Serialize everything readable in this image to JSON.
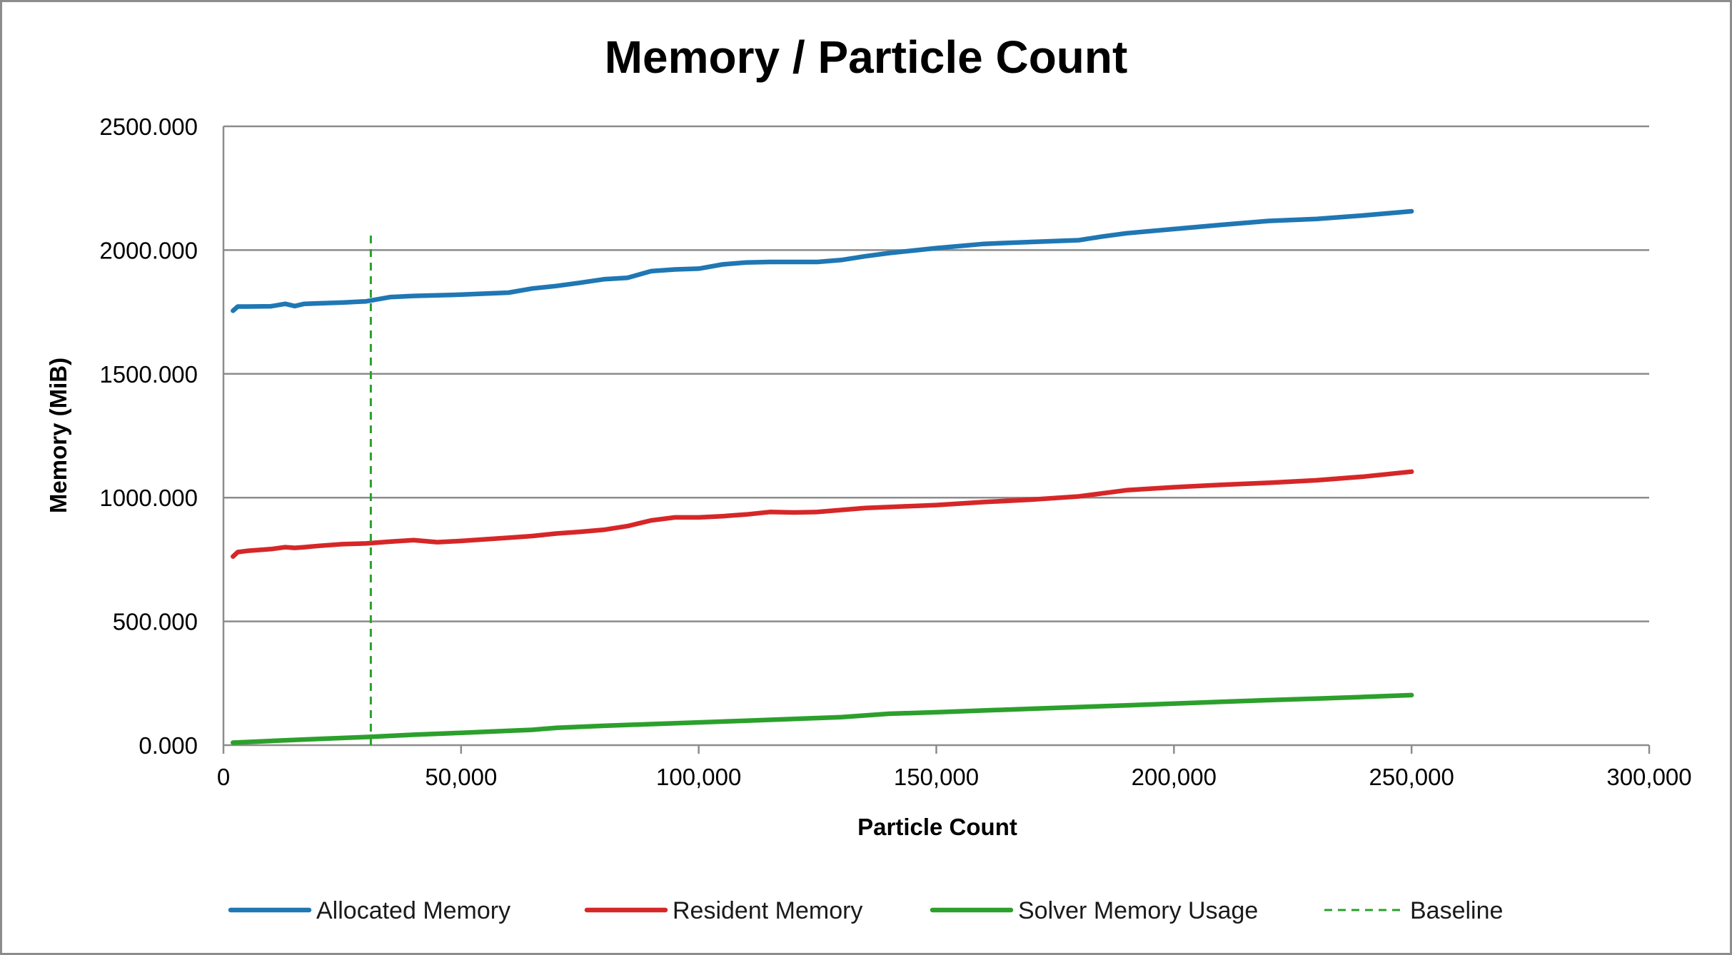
{
  "chart_data": {
    "type": "line",
    "title": "Memory / Particle Count",
    "xlabel": "Particle Count",
    "ylabel": "Memory (MiB)",
    "xlim": [
      0,
      300000
    ],
    "ylim": [
      0,
      2500
    ],
    "xticks": [
      0,
      50000,
      100000,
      150000,
      200000,
      250000,
      300000
    ],
    "xtick_labels": [
      "0",
      "50,000",
      "100,000",
      "150,000",
      "200,000",
      "250,000",
      "300,000"
    ],
    "yticks": [
      0,
      500,
      1000,
      1500,
      2000,
      2500
    ],
    "ytick_labels": [
      "0.000",
      "500.000",
      "1000.000",
      "1500.000",
      "2000.000",
      "2500.000"
    ],
    "grid": "horizontal",
    "legend_position": "bottom",
    "series": [
      {
        "name": "Allocated Memory",
        "color": "#1f77b4",
        "style": "solid",
        "x": [
          2000,
          3000,
          5000,
          10000,
          13000,
          15000,
          17000,
          20000,
          25000,
          30000,
          35000,
          40000,
          50000,
          60000,
          65000,
          70000,
          75000,
          80000,
          85000,
          90000,
          95000,
          100000,
          105000,
          110000,
          115000,
          120000,
          125000,
          130000,
          135000,
          140000,
          145000,
          150000,
          160000,
          170000,
          180000,
          185000,
          190000,
          200000,
          210000,
          220000,
          230000,
          240000,
          250000
        ],
        "y": [
          1755,
          1772,
          1772,
          1773,
          1783,
          1774,
          1783,
          1785,
          1788,
          1793,
          1810,
          1815,
          1820,
          1828,
          1845,
          1855,
          1868,
          1882,
          1888,
          1915,
          1922,
          1925,
          1942,
          1950,
          1952,
          1952,
          1952,
          1960,
          1975,
          1988,
          1998,
          2008,
          2025,
          2033,
          2040,
          2055,
          2068,
          2085,
          2102,
          2118,
          2126,
          2140,
          2157
        ]
      },
      {
        "name": "Resident Memory",
        "color": "#d62728",
        "style": "solid",
        "x": [
          2000,
          3000,
          5000,
          10000,
          13000,
          15000,
          17000,
          20000,
          25000,
          30000,
          35000,
          40000,
          45000,
          50000,
          60000,
          65000,
          70000,
          75000,
          80000,
          85000,
          90000,
          95000,
          100000,
          105000,
          110000,
          115000,
          120000,
          125000,
          130000,
          135000,
          140000,
          150000,
          160000,
          170000,
          180000,
          190000,
          200000,
          210000,
          220000,
          230000,
          240000,
          250000
        ],
        "y": [
          762,
          780,
          785,
          792,
          800,
          797,
          800,
          805,
          812,
          815,
          822,
          828,
          820,
          825,
          838,
          845,
          855,
          862,
          870,
          885,
          908,
          920,
          920,
          925,
          932,
          942,
          940,
          942,
          950,
          958,
          962,
          970,
          982,
          992,
          1005,
          1030,
          1042,
          1052,
          1060,
          1070,
          1085,
          1105
        ]
      },
      {
        "name": "Solver Memory Usage",
        "color": "#2ca02c",
        "style": "solid",
        "x": [
          2000,
          10000,
          20000,
          30000,
          40000,
          50000,
          60000,
          65000,
          70000,
          80000,
          90000,
          100000,
          110000,
          120000,
          130000,
          135000,
          140000,
          150000,
          160000,
          170000,
          180000,
          190000,
          200000,
          210000,
          220000,
          230000,
          240000,
          250000
        ],
        "y": [
          10,
          17,
          25,
          33,
          42,
          50,
          58,
          62,
          70,
          78,
          85,
          92,
          99,
          106,
          113,
          120,
          127,
          133,
          140,
          147,
          154,
          161,
          168,
          175,
          182,
          188,
          195,
          202
        ]
      },
      {
        "name": "Baseline",
        "color": "#2ca02c",
        "style": "dashed",
        "x": [
          31000,
          31000
        ],
        "y": [
          0,
          2065
        ]
      }
    ]
  }
}
